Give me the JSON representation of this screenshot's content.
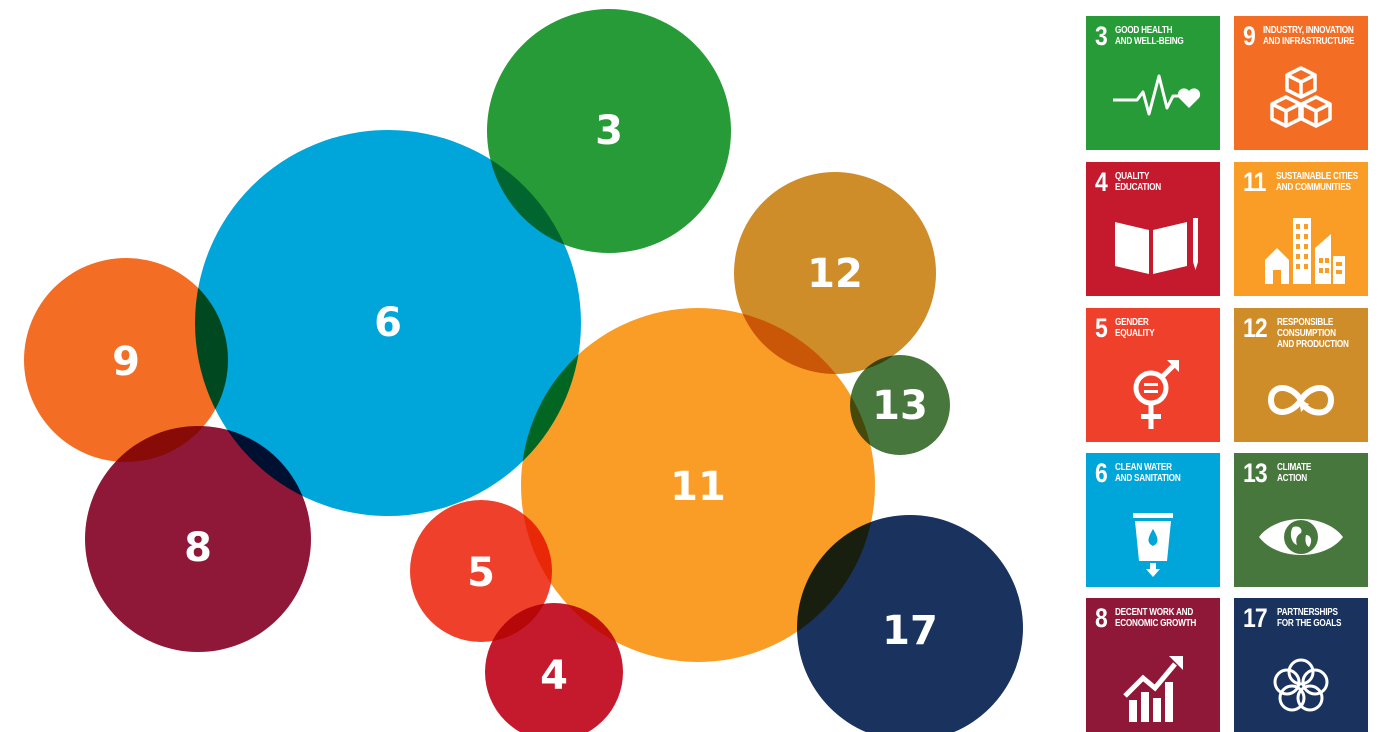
{
  "bubbles": [
    {
      "label": "3",
      "color": "#279b37"
    },
    {
      "label": "6",
      "color": "#00a6d9"
    },
    {
      "label": "9",
      "color": "#f36e24"
    },
    {
      "label": "8",
      "color": "#8f1838"
    },
    {
      "label": "12",
      "color": "#cf8d2a"
    },
    {
      "label": "11",
      "color": "#f99d26"
    },
    {
      "label": "13",
      "color": "#48773e"
    },
    {
      "label": "5",
      "color": "#ef402b"
    },
    {
      "label": "4",
      "color": "#c5192d"
    },
    {
      "label": "17",
      "color": "#19325e"
    }
  ],
  "tiles": [
    {
      "number": "3",
      "line1": "GOOD HEALTH",
      "line2": "AND WELL-BEING",
      "line3": "",
      "color": "#279b37",
      "icon": "heartbeat-icon"
    },
    {
      "number": "9",
      "line1": "INDUSTRY, INNOVATION",
      "line2": "AND INFRASTRUCTURE",
      "line3": "",
      "color": "#f36e24",
      "icon": "cubes-icon"
    },
    {
      "number": "4",
      "line1": "QUALITY",
      "line2": "EDUCATION",
      "line3": "",
      "color": "#c5192d",
      "icon": "book-pencil-icon"
    },
    {
      "number": "11",
      "line1": "SUSTAINABLE CITIES",
      "line2": "AND COMMUNITIES",
      "line3": "",
      "color": "#f99d26",
      "icon": "city-icon"
    },
    {
      "number": "5",
      "line1": "GENDER",
      "line2": "EQUALITY",
      "line3": "",
      "color": "#ef402b",
      "icon": "gender-equality-icon"
    },
    {
      "number": "12",
      "line1": "RESPONSIBLE",
      "line2": "CONSUMPTION",
      "line3": "AND PRODUCTION",
      "color": "#cf8d2a",
      "icon": "infinity-loop-icon"
    },
    {
      "number": "6",
      "line1": "CLEAN WATER",
      "line2": "AND SANITATION",
      "line3": "",
      "color": "#00a6d9",
      "icon": "water-glass-icon"
    },
    {
      "number": "13",
      "line1": "CLIMATE",
      "line2": "ACTION",
      "line3": "",
      "color": "#48773e",
      "icon": "earth-eye-icon"
    },
    {
      "number": "8",
      "line1": "DECENT WORK AND",
      "line2": "ECONOMIC GROWTH",
      "line3": "",
      "color": "#8f1838",
      "icon": "growth-chart-icon"
    },
    {
      "number": "17",
      "line1": "PARTNERSHIPS",
      "line2": "FOR THE GOALS",
      "line3": "",
      "color": "#19325e",
      "icon": "partnership-rings-icon"
    }
  ]
}
